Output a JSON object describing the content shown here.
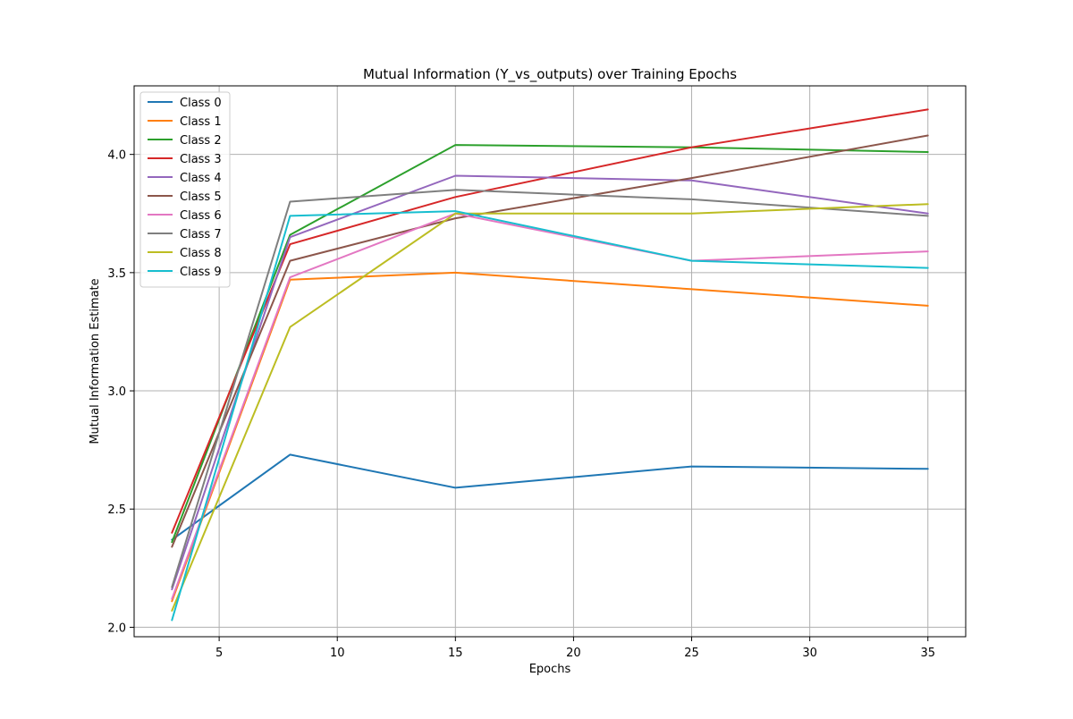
{
  "chart_data": {
    "type": "line",
    "title": "Mutual Information (Y_vs_outputs) over Training Epochs",
    "xlabel": "Epochs",
    "ylabel": "Mutual Information Estimate",
    "x": [
      3,
      8,
      15,
      25,
      35
    ],
    "xlim": [
      1.4,
      36.6
    ],
    "ylim": [
      1.96,
      4.29
    ],
    "xticks": [
      5,
      10,
      15,
      20,
      25,
      30,
      35
    ],
    "yticks": [
      2.0,
      2.5,
      3.0,
      3.5,
      4.0
    ],
    "grid": true,
    "legend_position": "top-left",
    "series": [
      {
        "name": "Class 0",
        "color": "#1f77b4",
        "values": [
          2.37,
          2.73,
          2.59,
          2.68,
          2.67
        ]
      },
      {
        "name": "Class 1",
        "color": "#ff7f0e",
        "values": [
          2.11,
          3.47,
          3.5,
          3.43,
          3.36
        ]
      },
      {
        "name": "Class 2",
        "color": "#2ca02c",
        "values": [
          2.36,
          3.66,
          4.04,
          4.03,
          4.01
        ]
      },
      {
        "name": "Class 3",
        "color": "#d62728",
        "values": [
          2.4,
          3.62,
          3.82,
          4.03,
          4.19
        ]
      },
      {
        "name": "Class 4",
        "color": "#9467bd",
        "values": [
          2.16,
          3.65,
          3.91,
          3.89,
          3.75
        ]
      },
      {
        "name": "Class 5",
        "color": "#8c564b",
        "values": [
          2.34,
          3.55,
          3.73,
          3.9,
          4.08
        ]
      },
      {
        "name": "Class 6",
        "color": "#e377c2",
        "values": [
          2.12,
          3.48,
          3.75,
          3.55,
          3.59
        ]
      },
      {
        "name": "Class 7",
        "color": "#7f7f7f",
        "values": [
          2.17,
          3.8,
          3.85,
          3.81,
          3.74
        ]
      },
      {
        "name": "Class 8",
        "color": "#bcbd22",
        "values": [
          2.07,
          3.27,
          3.75,
          3.75,
          3.79
        ]
      },
      {
        "name": "Class 9",
        "color": "#17becf",
        "values": [
          2.03,
          3.74,
          3.76,
          3.55,
          3.52
        ]
      }
    ]
  }
}
